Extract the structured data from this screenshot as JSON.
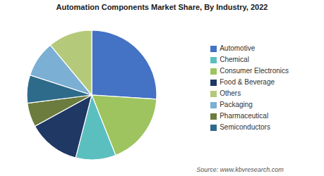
{
  "chart_data": {
    "type": "pie",
    "title": "Automation Components Market Share, By Industry, 2022",
    "annotations": [
      "Source: www.kbvresearch.com"
    ],
    "categories": [
      "Automotive",
      "Consumer Electronics",
      "Chemical",
      "Food & Beverage",
      "Pharmaceutical",
      "Semiconductors",
      "Packaging",
      "Others"
    ],
    "values": [
      26,
      18,
      10,
      13,
      6,
      7,
      9,
      11
    ],
    "colors": [
      "#4472c4",
      "#9dc45f",
      "#5bbfbf",
      "#1f3864",
      "#6b7c3e",
      "#2e6b8a",
      "#7bafd4",
      "#b5c97a"
    ],
    "legend": "right"
  }
}
